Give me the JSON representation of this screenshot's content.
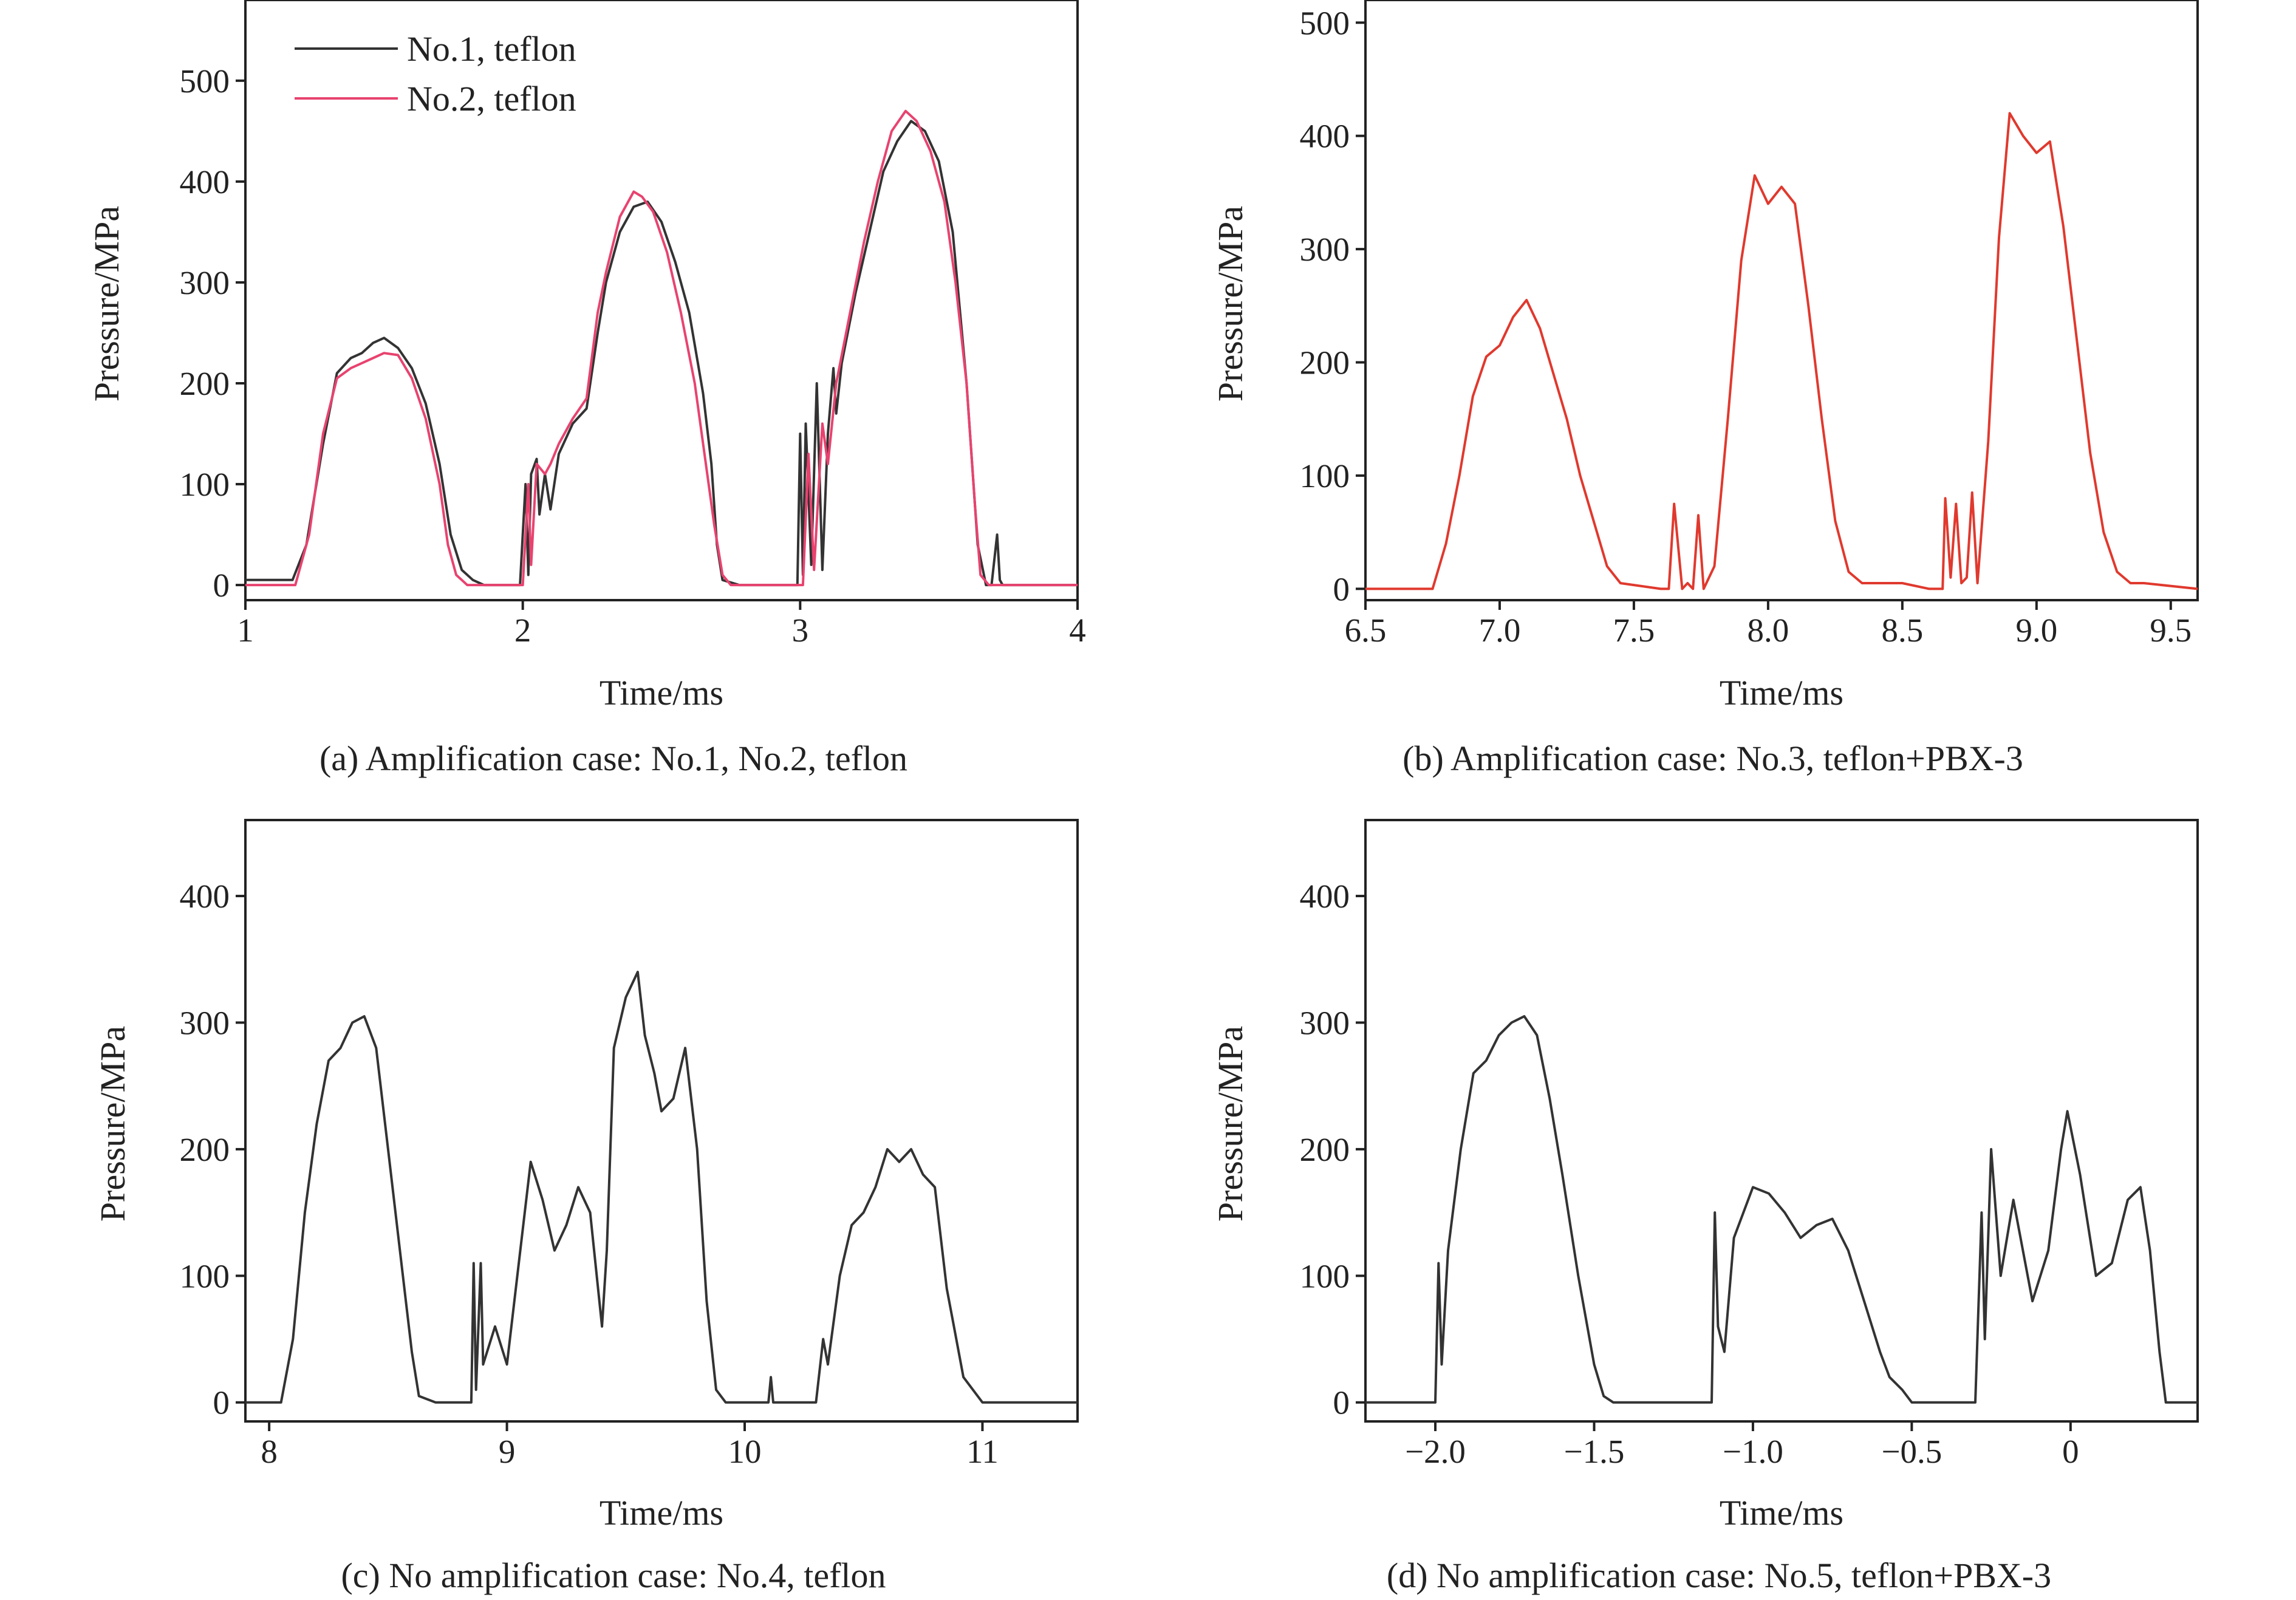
{
  "chart_data": [
    {
      "type": "line",
      "panel": "a",
      "caption": "(a) Amplification case: No.1, No.2, teflon",
      "xlabel": "Time/ms",
      "ylabel": "Pressure/MPa",
      "xlim": [
        1,
        4
      ],
      "ylim": [
        -15,
        580
      ],
      "xticks": [
        1,
        2,
        3,
        4
      ],
      "xtick_labels": [
        "1",
        "2",
        "3",
        "4"
      ],
      "yticks": [
        0,
        100,
        200,
        300,
        400,
        500
      ],
      "ytick_labels": [
        "0",
        "100",
        "200",
        "300",
        "400",
        "500"
      ],
      "legend": "top-left",
      "series": [
        {
          "name": "No.1, teflon",
          "color": "#333333",
          "x": [
            1.0,
            1.17,
            1.22,
            1.28,
            1.33,
            1.38,
            1.42,
            1.46,
            1.5,
            1.55,
            1.6,
            1.65,
            1.7,
            1.74,
            1.78,
            1.82,
            1.86,
            1.99,
            2.01,
            2.02,
            2.03,
            2.05,
            2.06,
            2.08,
            2.1,
            2.13,
            2.18,
            2.23,
            2.27,
            2.3,
            2.35,
            2.4,
            2.45,
            2.5,
            2.55,
            2.6,
            2.65,
            2.68,
            2.7,
            2.72,
            2.78,
            2.99,
            3.0,
            3.01,
            3.02,
            3.04,
            3.06,
            3.08,
            3.1,
            3.12,
            3.13,
            3.15,
            3.2,
            3.25,
            3.3,
            3.35,
            3.4,
            3.45,
            3.5,
            3.55,
            3.6,
            3.64,
            3.67,
            3.69,
            3.71,
            3.72,
            3.73,
            4.0
          ],
          "y": [
            5,
            5,
            40,
            140,
            210,
            225,
            230,
            240,
            245,
            235,
            215,
            180,
            120,
            50,
            15,
            5,
            0,
            0,
            100,
            10,
            110,
            125,
            70,
            110,
            75,
            130,
            160,
            175,
            250,
            300,
            350,
            375,
            380,
            360,
            320,
            270,
            190,
            120,
            40,
            5,
            0,
            0,
            150,
            10,
            160,
            20,
            200,
            15,
            150,
            215,
            170,
            220,
            290,
            350,
            410,
            440,
            460,
            450,
            420,
            350,
            200,
            40,
            0,
            0,
            50,
            5,
            0,
            0
          ]
        },
        {
          "name": "No.2, teflon",
          "color": "#e8436f",
          "x": [
            1.0,
            1.18,
            1.23,
            1.28,
            1.33,
            1.38,
            1.42,
            1.46,
            1.5,
            1.55,
            1.6,
            1.65,
            1.7,
            1.73,
            1.76,
            1.8,
            2.0,
            2.02,
            2.03,
            2.05,
            2.08,
            2.1,
            2.13,
            2.18,
            2.23,
            2.27,
            2.3,
            2.35,
            2.4,
            2.43,
            2.47,
            2.52,
            2.57,
            2.62,
            2.66,
            2.69,
            2.72,
            2.75,
            3.01,
            3.03,
            3.05,
            3.08,
            3.1,
            3.13,
            3.18,
            3.23,
            3.28,
            3.33,
            3.38,
            3.42,
            3.47,
            3.52,
            3.56,
            3.6,
            3.63,
            3.65,
            3.68,
            4.0
          ],
          "y": [
            0,
            0,
            50,
            150,
            205,
            215,
            220,
            225,
            230,
            228,
            205,
            165,
            100,
            40,
            10,
            0,
            0,
            100,
            20,
            120,
            110,
            120,
            140,
            165,
            185,
            270,
            310,
            365,
            390,
            385,
            370,
            330,
            270,
            200,
            120,
            60,
            10,
            0,
            0,
            130,
            15,
            160,
            120,
            200,
            270,
            340,
            400,
            450,
            470,
            460,
            430,
            380,
            300,
            200,
            80,
            10,
            0,
            0
          ]
        }
      ]
    },
    {
      "type": "line",
      "panel": "b",
      "caption": "(b) Amplification case: No.3, teflon+PBX-3",
      "xlabel": "Time/ms",
      "ylabel": "Pressure/MPa",
      "xlim": [
        6.5,
        9.6
      ],
      "ylim": [
        -10,
        520
      ],
      "xticks": [
        6.5,
        7.0,
        7.5,
        8.0,
        8.5,
        9.0,
        9.5
      ],
      "xtick_labels": [
        "6.5",
        "7.0",
        "7.5",
        "8.0",
        "8.5",
        "9.0",
        "9.5"
      ],
      "yticks": [
        0,
        100,
        200,
        300,
        400,
        500
      ],
      "ytick_labels": [
        "0",
        "100",
        "200",
        "300",
        "400",
        "500"
      ],
      "series": [
        {
          "color": "#e0392e",
          "x": [
            6.5,
            6.75,
            6.8,
            6.85,
            6.9,
            6.95,
            7.0,
            7.05,
            7.1,
            7.15,
            7.2,
            7.25,
            7.3,
            7.35,
            7.4,
            7.45,
            7.6,
            7.63,
            7.65,
            7.68,
            7.7,
            7.72,
            7.74,
            7.76,
            7.8,
            7.85,
            7.9,
            7.95,
            8.0,
            8.05,
            8.1,
            8.15,
            8.2,
            8.25,
            8.3,
            8.35,
            8.4,
            8.5,
            8.6,
            8.65,
            8.66,
            8.68,
            8.7,
            8.72,
            8.74,
            8.76,
            8.78,
            8.82,
            8.86,
            8.9,
            8.95,
            9.0,
            9.05,
            9.1,
            9.15,
            9.2,
            9.25,
            9.3,
            9.35,
            9.4,
            9.6
          ],
          "y": [
            0,
            0,
            40,
            100,
            170,
            205,
            215,
            240,
            255,
            230,
            190,
            150,
            100,
            60,
            20,
            5,
            0,
            0,
            75,
            0,
            5,
            0,
            65,
            0,
            20,
            150,
            290,
            365,
            340,
            355,
            340,
            250,
            150,
            60,
            15,
            5,
            5,
            5,
            0,
            0,
            80,
            10,
            75,
            5,
            10,
            85,
            5,
            130,
            310,
            420,
            400,
            385,
            395,
            320,
            220,
            120,
            50,
            15,
            5,
            5,
            0
          ]
        }
      ]
    },
    {
      "type": "line",
      "panel": "c",
      "caption": "(c) No amplification case: No.4, teflon",
      "xlabel": "Time/ms",
      "ylabel": "Pressure/MPa",
      "xlim": [
        7.9,
        11.4
      ],
      "ylim": [
        -15,
        460
      ],
      "xticks": [
        8,
        9,
        10,
        11
      ],
      "xtick_labels": [
        "8",
        "9",
        "10",
        "11"
      ],
      "yticks": [
        0,
        100,
        200,
        300,
        400
      ],
      "ytick_labels": [
        "0",
        "100",
        "200",
        "300",
        "400"
      ],
      "series": [
        {
          "color": "#333333",
          "x": [
            7.9,
            8.05,
            8.1,
            8.15,
            8.2,
            8.25,
            8.3,
            8.35,
            8.4,
            8.45,
            8.5,
            8.55,
            8.6,
            8.63,
            8.7,
            8.85,
            8.86,
            8.87,
            8.89,
            8.9,
            8.95,
            9.0,
            9.05,
            9.1,
            9.15,
            9.2,
            9.25,
            9.3,
            9.35,
            9.4,
            9.42,
            9.45,
            9.5,
            9.55,
            9.58,
            9.62,
            9.65,
            9.7,
            9.75,
            9.8,
            9.84,
            9.88,
            9.92,
            10.0,
            10.1,
            10.11,
            10.12,
            10.3,
            10.33,
            10.35,
            10.4,
            10.45,
            10.5,
            10.55,
            10.6,
            10.65,
            10.7,
            10.75,
            10.8,
            10.85,
            10.88,
            10.92,
            11.0,
            11.4
          ],
          "y": [
            0,
            0,
            50,
            150,
            220,
            270,
            280,
            300,
            305,
            280,
            200,
            120,
            40,
            5,
            0,
            0,
            110,
            10,
            110,
            30,
            60,
            30,
            110,
            190,
            160,
            120,
            140,
            170,
            150,
            60,
            120,
            280,
            320,
            340,
            290,
            260,
            230,
            240,
            280,
            200,
            80,
            10,
            0,
            0,
            0,
            20,
            0,
            0,
            50,
            30,
            100,
            140,
            150,
            170,
            200,
            190,
            200,
            180,
            170,
            90,
            60,
            20,
            0,
            0
          ]
        }
      ]
    },
    {
      "type": "line",
      "panel": "d",
      "caption": "(d) No amplification case: No.5, teflon+PBX-3",
      "xlabel": "Time/ms",
      "ylabel": "Pressure/MPa",
      "xlim": [
        -2.22,
        0.4
      ],
      "ylim": [
        -15,
        460
      ],
      "xticks": [
        -2.0,
        -1.5,
        -1.0,
        -0.5,
        0
      ],
      "xtick_labels": [
        "−2.0",
        "−1.5",
        "−1.0",
        "−0.5",
        "0"
      ],
      "yticks": [
        0,
        100,
        200,
        300,
        400
      ],
      "ytick_labels": [
        "0",
        "100",
        "200",
        "300",
        "400"
      ],
      "series": [
        {
          "color": "#333333",
          "x": [
            -2.22,
            -2.0,
            -1.99,
            -1.98,
            -1.96,
            -1.92,
            -1.88,
            -1.84,
            -1.8,
            -1.76,
            -1.72,
            -1.68,
            -1.64,
            -1.6,
            -1.55,
            -1.5,
            -1.47,
            -1.44,
            -1.4,
            -1.13,
            -1.12,
            -1.11,
            -1.09,
            -1.06,
            -1.0,
            -0.95,
            -0.9,
            -0.85,
            -0.8,
            -0.75,
            -0.7,
            -0.65,
            -0.6,
            -0.57,
            -0.53,
            -0.5,
            -0.45,
            -0.3,
            -0.28,
            -0.27,
            -0.25,
            -0.22,
            -0.18,
            -0.12,
            -0.07,
            -0.03,
            -0.01,
            0.03,
            0.08,
            0.13,
            0.18,
            0.22,
            0.25,
            0.28,
            0.3,
            0.4
          ],
          "y": [
            0,
            0,
            110,
            30,
            120,
            200,
            260,
            270,
            290,
            300,
            305,
            290,
            240,
            180,
            100,
            30,
            5,
            0,
            0,
            0,
            150,
            60,
            40,
            130,
            170,
            165,
            150,
            130,
            140,
            145,
            120,
            80,
            40,
            20,
            10,
            0,
            0,
            0,
            150,
            50,
            200,
            100,
            160,
            80,
            120,
            200,
            230,
            180,
            100,
            110,
            160,
            170,
            120,
            40,
            0,
            0
          ]
        }
      ]
    }
  ]
}
